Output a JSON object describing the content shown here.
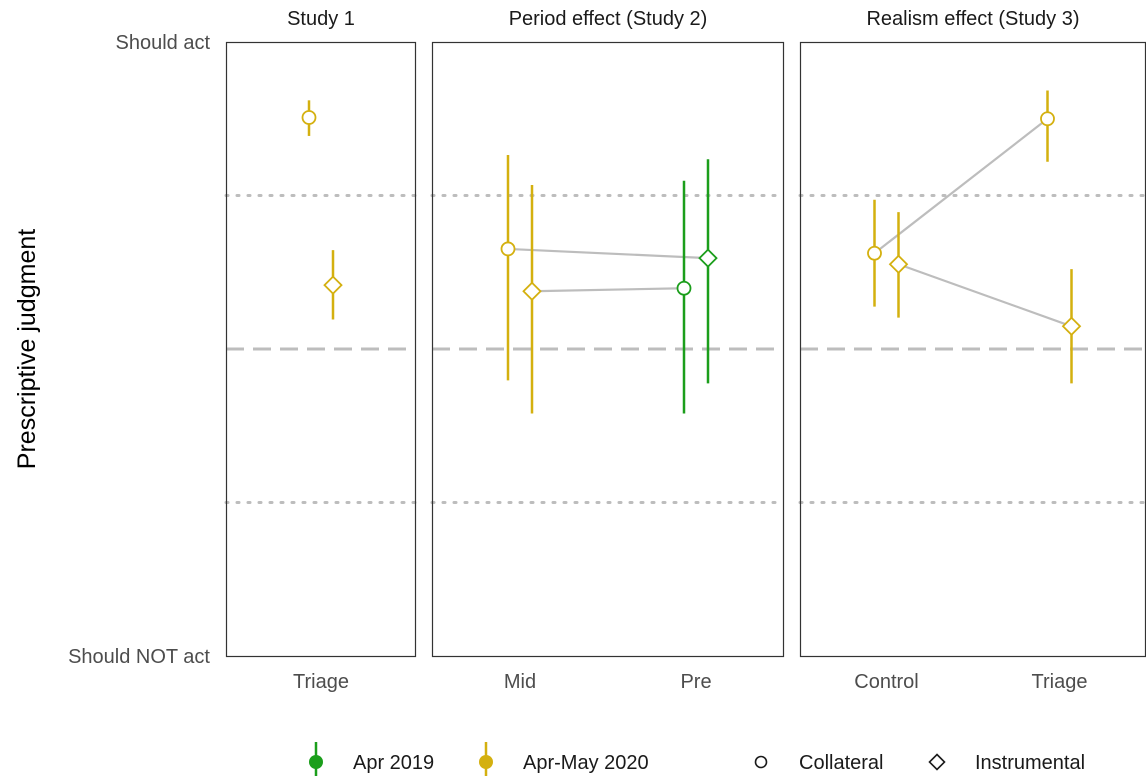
{
  "chart_data": {
    "type": "scatter",
    "ylabel": "Prescriptive judgment",
    "ytick_labels": {
      "top": "Should act",
      "bottom": "Should NOT act"
    },
    "ylim": [
      0,
      1
    ],
    "reference_lines": {
      "dashed": [
        0.5
      ],
      "dotted": [
        0.25,
        0.75
      ]
    },
    "colors": {
      "Apr 2019": "#1b9e1b",
      "Apr-May 2020": "#d4b00f",
      "connector": "#bdbdbd",
      "frame": "#333333"
    },
    "shapes": {
      "Collateral": "circle",
      "Instrumental": "diamond"
    },
    "legend": {
      "position": "bottom",
      "period": [
        "Apr 2019",
        "Apr-May 2020"
      ],
      "type": [
        "Collateral",
        "Instrumental"
      ]
    },
    "panels": [
      {
        "title": "Study 1",
        "categories": [
          "Triage"
        ],
        "points": [
          {
            "x": "Triage",
            "type": "Collateral",
            "period": "Apr-May 2020",
            "y": 0.877,
            "lo": 0.847,
            "hi": 0.905
          },
          {
            "x": "Triage",
            "type": "Instrumental",
            "period": "Apr-May 2020",
            "y": 0.604,
            "lo": 0.548,
            "hi": 0.661
          }
        ],
        "connections": []
      },
      {
        "title": "Period effect (Study 2)",
        "categories": [
          "Mid",
          "Pre"
        ],
        "points": [
          {
            "x": "Mid",
            "type": "Collateral",
            "period": "Apr-May 2020",
            "y": 0.663,
            "lo": 0.449,
            "hi": 0.816
          },
          {
            "x": "Mid",
            "type": "Instrumental",
            "period": "Apr-May 2020",
            "y": 0.594,
            "lo": 0.395,
            "hi": 0.767
          },
          {
            "x": "Pre",
            "type": "Collateral",
            "period": "Apr 2019",
            "y": 0.599,
            "lo": 0.395,
            "hi": 0.774
          },
          {
            "x": "Pre",
            "type": "Instrumental",
            "period": "Apr 2019",
            "y": 0.648,
            "lo": 0.444,
            "hi": 0.809
          }
        ],
        "connections": [
          [
            0,
            3
          ],
          [
            1,
            2
          ]
        ]
      },
      {
        "title": "Realism effect (Study 3)",
        "categories": [
          "Control",
          "Triage"
        ],
        "points": [
          {
            "x": "Control",
            "type": "Collateral",
            "period": "Apr-May 2020",
            "y": 0.656,
            "lo": 0.569,
            "hi": 0.743
          },
          {
            "x": "Control",
            "type": "Instrumental",
            "period": "Apr-May 2020",
            "y": 0.638,
            "lo": 0.551,
            "hi": 0.723
          },
          {
            "x": "Triage",
            "type": "Collateral",
            "period": "Apr-May 2020",
            "y": 0.875,
            "lo": 0.805,
            "hi": 0.921
          },
          {
            "x": "Triage",
            "type": "Instrumental",
            "period": "Apr-May 2020",
            "y": 0.537,
            "lo": 0.444,
            "hi": 0.63
          }
        ],
        "connections": [
          [
            0,
            2
          ],
          [
            1,
            3
          ]
        ]
      }
    ]
  }
}
